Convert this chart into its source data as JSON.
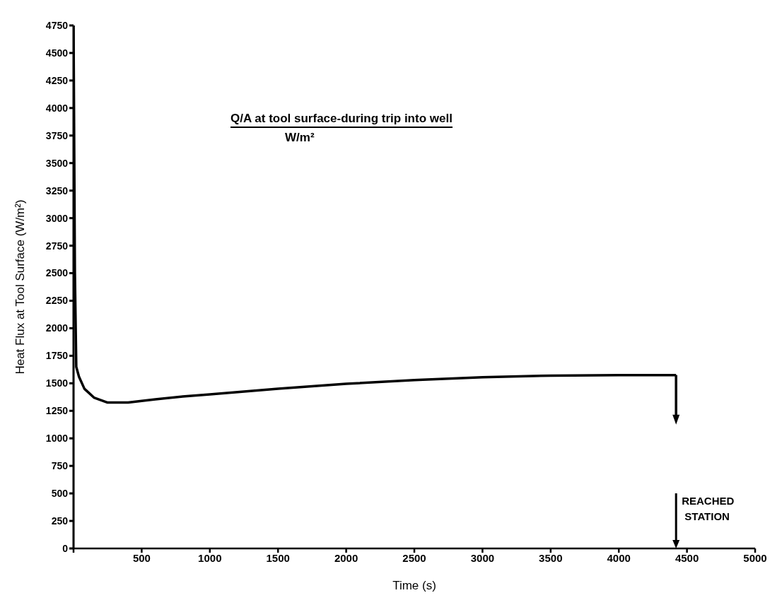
{
  "chart_data": {
    "type": "line",
    "title": "Q/A  at tool surface-during trip into well",
    "subtitle": "W/m²",
    "xlabel": "Time (s)",
    "ylabel": "Heat Flux at Tool Surface (W/m²)",
    "x": [
      0,
      10,
      20,
      40,
      80,
      150,
      250,
      400,
      600,
      800,
      1000,
      1500,
      2000,
      2500,
      3000,
      3500,
      4000,
      4420
    ],
    "series": [
      {
        "color": "#000000",
        "values": [
          4750,
          2500,
          1650,
          1560,
          1450,
          1370,
          1325,
          1325,
          1355,
          1380,
          1400,
          1450,
          1495,
          1530,
          1555,
          1570,
          1575,
          1575
        ]
      }
    ],
    "xlim": [
      0,
      5000
    ],
    "xticks": [
      {
        "value": 0,
        "label": null
      },
      500,
      1000,
      1500,
      2000,
      2500,
      3000,
      3500,
      4000,
      4500,
      5000
    ],
    "ylim": [
      0,
      4750
    ],
    "yticks": [
      0,
      250,
      500,
      750,
      1000,
      1250,
      1500,
      1750,
      2000,
      2250,
      2500,
      2750,
      3000,
      3250,
      3500,
      3750,
      4000,
      4250,
      4500,
      4750
    ],
    "annotations": [
      "REACHED STATION"
    ],
    "grid": false,
    "legend": false,
    "marker": "none",
    "line_style": "solid"
  }
}
